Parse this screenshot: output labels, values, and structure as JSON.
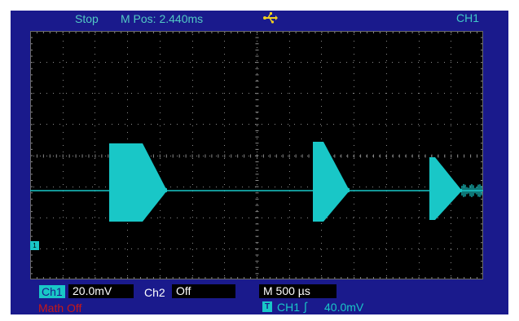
{
  "header": {
    "status": "Stop",
    "m_pos": "M Pos: 2.440ms",
    "usb_icon": "usb-icon",
    "trigger_channel": "CH1"
  },
  "colors": {
    "frame": "#1a1a8c",
    "trace_ch1": "#19c7c7",
    "math": "#c81818",
    "screen_bg": "#000000"
  },
  "channels": {
    "ch1_tag": "Ch1",
    "ch1_scale": "20.0mV",
    "ch2_tag": "Ch2",
    "ch2_state": "Off",
    "math_tag": "Math",
    "math_state": "Off",
    "ground_marker": "1"
  },
  "timebase": {
    "label": "M 500 µs"
  },
  "trigger": {
    "badge": "T",
    "source": "CH1",
    "slope": "∫",
    "level": "40.0mV"
  }
}
